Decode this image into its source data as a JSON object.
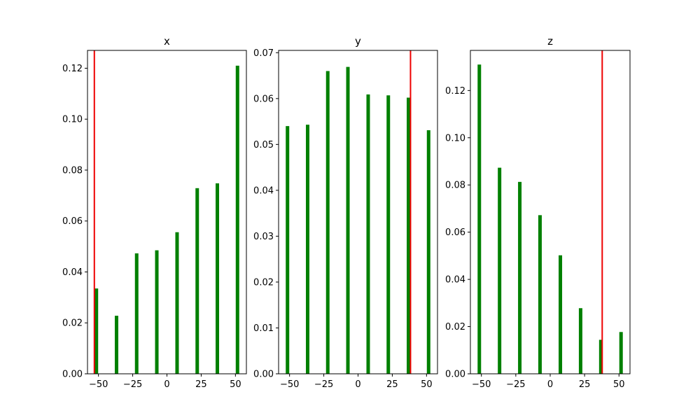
{
  "colors": {
    "bar": "#008000",
    "marker_line": "#ee0000",
    "axes": "#000000",
    "background": "#ffffff"
  },
  "chart_data": [
    {
      "type": "bar",
      "title": "x",
      "x": [
        -51.5,
        -36.8,
        -22.1,
        -7.4,
        7.4,
        22.1,
        36.8,
        51.5
      ],
      "values": [
        0.0335,
        0.0228,
        0.0473,
        0.0485,
        0.0556,
        0.0729,
        0.0748,
        0.121
      ],
      "reference_line_x": -53,
      "xlim": [
        -58,
        58
      ],
      "ylim": [
        0,
        0.127
      ],
      "xticks": [
        -50,
        -25,
        0,
        25,
        50
      ],
      "xtick_labels": [
        "−50",
        "−25",
        "0",
        "25",
        "50"
      ],
      "yticks": [
        0,
        0.02,
        0.04,
        0.06,
        0.08,
        0.1,
        0.12
      ],
      "ytick_labels": [
        "0.00",
        "0.02",
        "0.04",
        "0.06",
        "0.08",
        "0.10",
        "0.12"
      ]
    },
    {
      "type": "bar",
      "title": "y",
      "x": [
        -51.5,
        -36.8,
        -22.1,
        -7.4,
        7.4,
        22.1,
        36.8,
        51.5
      ],
      "values": [
        0.054,
        0.0543,
        0.066,
        0.0669,
        0.0609,
        0.0607,
        0.0602,
        0.0531
      ],
      "reference_line_x": 38.3,
      "xlim": [
        -58,
        58
      ],
      "ylim": [
        0,
        0.0705
      ],
      "xticks": [
        -50,
        -25,
        0,
        25,
        50
      ],
      "xtick_labels": [
        "−50",
        "−25",
        "0",
        "25",
        "50"
      ],
      "yticks": [
        0,
        0.01,
        0.02,
        0.03,
        0.04,
        0.05,
        0.06,
        0.07
      ],
      "ytick_labels": [
        "0.00",
        "0.01",
        "0.02",
        "0.03",
        "0.04",
        "0.05",
        "0.06",
        "0.07"
      ]
    },
    {
      "type": "bar",
      "title": "z",
      "x": [
        -51.5,
        -36.8,
        -22.1,
        -7.4,
        7.4,
        22.1,
        36.8,
        51.5
      ],
      "values": [
        0.131,
        0.0873,
        0.0813,
        0.0672,
        0.0502,
        0.0278,
        0.0144,
        0.0177
      ],
      "reference_line_x": 37.8,
      "xlim": [
        -58,
        58
      ],
      "ylim": [
        0,
        0.137
      ],
      "xticks": [
        -50,
        -25,
        0,
        25,
        50
      ],
      "xtick_labels": [
        "−50",
        "−25",
        "0",
        "25",
        "50"
      ],
      "yticks": [
        0,
        0.02,
        0.04,
        0.06,
        0.08,
        0.1,
        0.12
      ],
      "ytick_labels": [
        "0.00",
        "0.02",
        "0.04",
        "0.06",
        "0.08",
        "0.10",
        "0.12"
      ]
    }
  ]
}
